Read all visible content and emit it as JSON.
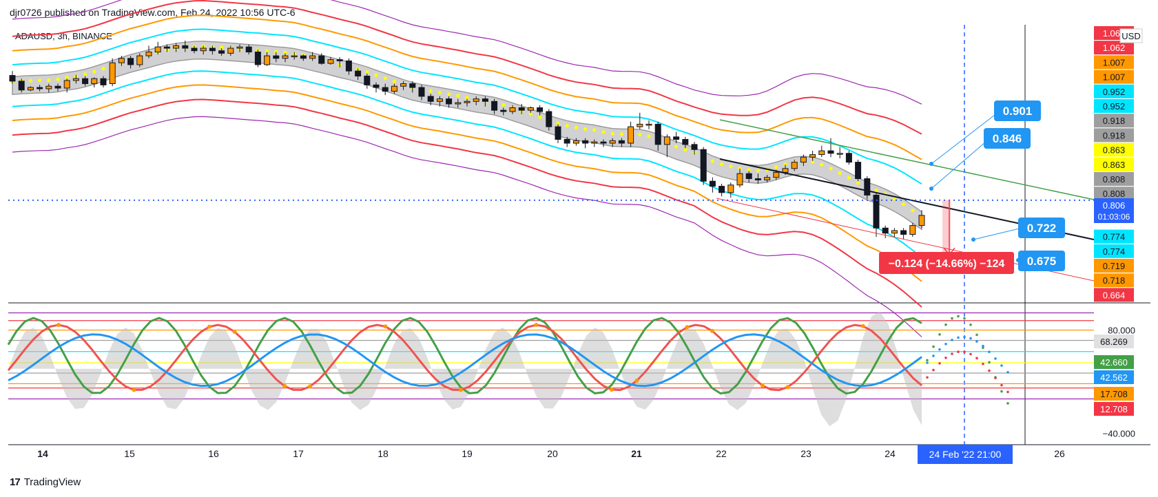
{
  "header": {
    "publisher_text": "djr0726 published on TradingView.com, Feb 24, 2022 10:56 UTC-6"
  },
  "symbol": {
    "label": "ADAUSD, 3h, BINANCE"
  },
  "footer": {
    "brand": "TradingView",
    "logo_glyph": "17"
  },
  "colors": {
    "red": "#f23645",
    "orange": "#ff9800",
    "cyan": "#00e5ff",
    "gray": "#9e9e9e",
    "yellow": "#ffff00",
    "purple": "#9c27b0",
    "blue": "#2196f3",
    "green": "#43a047",
    "price_line": "#2962ff",
    "label_blue": "#2196f3"
  },
  "chart_data": [
    {
      "type": "candlestick",
      "title": "ADAUSD, 3h, BINANCE",
      "currency": "USD",
      "x_ticks": [
        "14",
        "15",
        "16",
        "17",
        "18",
        "19",
        "20",
        "21",
        "22",
        "23",
        "24",
        "26"
      ],
      "cursor_date_label": "24 Feb '22   21:00",
      "price_axis_labels": [
        {
          "value": "1.063",
          "color": "#f23645"
        },
        {
          "value": "1.062",
          "color": "#f23645"
        },
        {
          "value": "1.007",
          "color": "#ff9800"
        },
        {
          "value": "1.007",
          "color": "#ff9800"
        },
        {
          "value": "0.952",
          "color": "#00e5ff"
        },
        {
          "value": "0.952",
          "color": "#00e5ff"
        },
        {
          "value": "0.918",
          "color": "#9e9e9e"
        },
        {
          "value": "0.918",
          "color": "#9e9e9e"
        },
        {
          "value": "0.863",
          "color": "#ffff00"
        },
        {
          "value": "0.863",
          "color": "#ffff00"
        },
        {
          "value": "0.808",
          "color": "#9e9e9e"
        },
        {
          "value": "0.808",
          "color": "#9e9e9e"
        },
        {
          "value": "0.806",
          "color": "#ffffff"
        },
        {
          "value": "0.774",
          "color": "#00e5ff"
        },
        {
          "value": "0.774",
          "color": "#00e5ff"
        },
        {
          "value": "0.719",
          "color": "#ff9800"
        },
        {
          "value": "0.718",
          "color": "#ff9800"
        },
        {
          "value": "0.664",
          "color": "#f23645"
        }
      ],
      "last_price": "0.806",
      "countdown": "01:03:06",
      "price_callouts": [
        "0.901",
        "0.846",
        "0.722",
        "0.675"
      ],
      "measure_label": "−0.124 (−14.66%) −124",
      "candles": [
        [
          1.003,
          0.994,
          1.01,
          0.99
        ],
        [
          0.994,
          0.98,
          0.998,
          0.976
        ],
        [
          0.98,
          0.984,
          0.986,
          0.978
        ],
        [
          0.984,
          0.982,
          0.988,
          0.978
        ],
        [
          0.982,
          0.986,
          0.99,
          0.976
        ],
        [
          0.986,
          0.983,
          0.99,
          0.978
        ],
        [
          0.983,
          0.995,
          0.998,
          0.976
        ],
        [
          0.995,
          0.998,
          1.004,
          0.99
        ],
        [
          0.998,
          0.99,
          1.002,
          0.986
        ],
        [
          0.99,
          0.998,
          1.0,
          0.984
        ],
        [
          0.998,
          0.988,
          1.002,
          0.984
        ],
        [
          0.99,
          1.023,
          1.03,
          0.986
        ],
        [
          1.023,
          1.03,
          1.034,
          1.018
        ],
        [
          1.03,
          1.02,
          1.034,
          1.014
        ],
        [
          1.02,
          1.034,
          1.038,
          1.016
        ],
        [
          1.034,
          1.04,
          1.05,
          1.03
        ],
        [
          1.04,
          1.048,
          1.056,
          1.036
        ],
        [
          1.048,
          1.046,
          1.052,
          1.04
        ],
        [
          1.046,
          1.05,
          1.054,
          1.04
        ],
        [
          1.05,
          1.046,
          1.058,
          1.04
        ],
        [
          1.046,
          1.042,
          1.05,
          1.038
        ],
        [
          1.042,
          1.046,
          1.05,
          1.036
        ],
        [
          1.046,
          1.042,
          1.05,
          1.036
        ],
        [
          1.042,
          1.038,
          1.046,
          1.034
        ],
        [
          1.038,
          1.046,
          1.05,
          1.034
        ],
        [
          1.046,
          1.048,
          1.052,
          1.04
        ],
        [
          1.048,
          1.04,
          1.052,
          1.036
        ],
        [
          1.04,
          1.02,
          1.044,
          1.016
        ],
        [
          1.02,
          1.034,
          1.04,
          1.018
        ],
        [
          1.034,
          1.03,
          1.04,
          1.024
        ],
        [
          1.03,
          1.034,
          1.038,
          1.024
        ],
        [
          1.034,
          1.034,
          1.04,
          1.028
        ],
        [
          1.034,
          1.03,
          1.036,
          1.026
        ],
        [
          1.03,
          1.034,
          1.04,
          1.026
        ],
        [
          1.034,
          1.022,
          1.038,
          1.02
        ],
        [
          1.022,
          1.028,
          1.032,
          1.02
        ],
        [
          1.028,
          1.026,
          1.032,
          1.016
        ],
        [
          1.026,
          1.01,
          1.03,
          1.004
        ],
        [
          1.01,
          1.002,
          1.014,
          0.996
        ],
        [
          1.002,
          0.988,
          1.006,
          0.982
        ],
        [
          0.988,
          0.984,
          0.992,
          0.976
        ],
        [
          0.984,
          0.978,
          0.99,
          0.972
        ],
        [
          0.978,
          0.986,
          0.99,
          0.974
        ],
        [
          0.986,
          0.99,
          0.994,
          0.98
        ],
        [
          0.99,
          0.984,
          0.994,
          0.976
        ],
        [
          0.984,
          0.97,
          0.988,
          0.964
        ],
        [
          0.97,
          0.962,
          0.974,
          0.956
        ],
        [
          0.962,
          0.966,
          0.97,
          0.954
        ],
        [
          0.966,
          0.958,
          0.97,
          0.952
        ],
        [
          0.958,
          0.96,
          0.966,
          0.952
        ],
        [
          0.96,
          0.962,
          0.966,
          0.954
        ],
        [
          0.962,
          0.966,
          0.97,
          0.956
        ],
        [
          0.966,
          0.962,
          0.97,
          0.954
        ],
        [
          0.962,
          0.948,
          0.966,
          0.942
        ],
        [
          0.948,
          0.946,
          0.952,
          0.94
        ],
        [
          0.946,
          0.952,
          0.956,
          0.942
        ],
        [
          0.952,
          0.948,
          0.958,
          0.942
        ],
        [
          0.948,
          0.952,
          0.954,
          0.944
        ],
        [
          0.952,
          0.946,
          0.956,
          0.94
        ],
        [
          0.946,
          0.922,
          0.95,
          0.916
        ],
        [
          0.922,
          0.902,
          0.926,
          0.896
        ],
        [
          0.902,
          0.896,
          0.906,
          0.89
        ],
        [
          0.896,
          0.9,
          0.904,
          0.892
        ],
        [
          0.9,
          0.896,
          0.904,
          0.888
        ],
        [
          0.896,
          0.898,
          0.902,
          0.89
        ],
        [
          0.898,
          0.896,
          0.902,
          0.89
        ],
        [
          0.896,
          0.9,
          0.904,
          0.89
        ],
        [
          0.9,
          0.896,
          0.904,
          0.89
        ],
        [
          0.896,
          0.922,
          0.93,
          0.89
        ],
        [
          0.922,
          0.926,
          0.944,
          0.918
        ],
        [
          0.926,
          0.926,
          0.932,
          0.918
        ],
        [
          0.926,
          0.894,
          0.93,
          0.884
        ],
        [
          0.894,
          0.906,
          0.91,
          0.874
        ],
        [
          0.906,
          0.902,
          0.914,
          0.896
        ],
        [
          0.902,
          0.894,
          0.906,
          0.888
        ],
        [
          0.894,
          0.886,
          0.898,
          0.878
        ],
        [
          0.886,
          0.836,
          0.89,
          0.83
        ],
        [
          0.836,
          0.828,
          0.842,
          0.818
        ],
        [
          0.828,
          0.818,
          0.832,
          0.812
        ],
        [
          0.818,
          0.83,
          0.834,
          0.81
        ],
        [
          0.83,
          0.848,
          0.856,
          0.826
        ],
        [
          0.848,
          0.84,
          0.852,
          0.834
        ],
        [
          0.84,
          0.838,
          0.848,
          0.832
        ],
        [
          0.838,
          0.842,
          0.846,
          0.834
        ],
        [
          0.842,
          0.85,
          0.854,
          0.838
        ],
        [
          0.85,
          0.856,
          0.862,
          0.846
        ],
        [
          0.856,
          0.866,
          0.87,
          0.852
        ],
        [
          0.866,
          0.874,
          0.878,
          0.86
        ],
        [
          0.874,
          0.878,
          0.884,
          0.868
        ],
        [
          0.878,
          0.884,
          0.892,
          0.874
        ],
        [
          0.884,
          0.88,
          0.904,
          0.874
        ],
        [
          0.88,
          0.88,
          0.89,
          0.872
        ],
        [
          0.88,
          0.866,
          0.884,
          0.862
        ],
        [
          0.866,
          0.84,
          0.87,
          0.836
        ],
        [
          0.84,
          0.814,
          0.844,
          0.808
        ],
        [
          0.814,
          0.762,
          0.818,
          0.748
        ],
        [
          0.762,
          0.754,
          0.766,
          0.746
        ],
        [
          0.754,
          0.758,
          0.762,
          0.748
        ],
        [
          0.758,
          0.752,
          0.762,
          0.744
        ],
        [
          0.752,
          0.766,
          0.77,
          0.748
        ],
        [
          0.766,
          0.782,
          0.79,
          0.762
        ]
      ],
      "indicators": {
        "keltner_upper": {
          "start": 1.13,
          "mid": 1.05,
          "end": 0.965
        },
        "keltner_lower": {
          "start": 0.93,
          "mid": 0.87,
          "end": 0.73
        }
      }
    },
    {
      "type": "line",
      "title": "",
      "y_ticks": [
        "80.000",
        "−40.000"
      ],
      "axis_labels": [
        {
          "value": "68.269",
          "color": "#e0e0e0"
        },
        {
          "value": "42.660",
          "color": "#43a047"
        },
        {
          "value": "42.562",
          "color": "#2196f3"
        },
        {
          "value": "17.708",
          "color": "#ff9800"
        },
        {
          "value": "12.708",
          "color": "#f23645"
        }
      ],
      "ylim": [
        -50,
        110
      ],
      "levels": [
        {
          "value": 100,
          "color": "#9c27b0"
        },
        {
          "value": 91,
          "color": "#f23645"
        },
        {
          "value": 80,
          "color": "#ff9800"
        },
        {
          "value": 68,
          "color": "#9e9e9e"
        },
        {
          "value": 55,
          "color": "#00e5ff"
        },
        {
          "value": 42,
          "color": "#ffff00"
        },
        {
          "value": 30,
          "color": "#9e9e9e"
        },
        {
          "value": 17.7,
          "color": "#ff9800"
        },
        {
          "value": 12.7,
          "color": "#f23645"
        },
        {
          "value": 0,
          "color": "#9c27b0"
        }
      ]
    }
  ]
}
